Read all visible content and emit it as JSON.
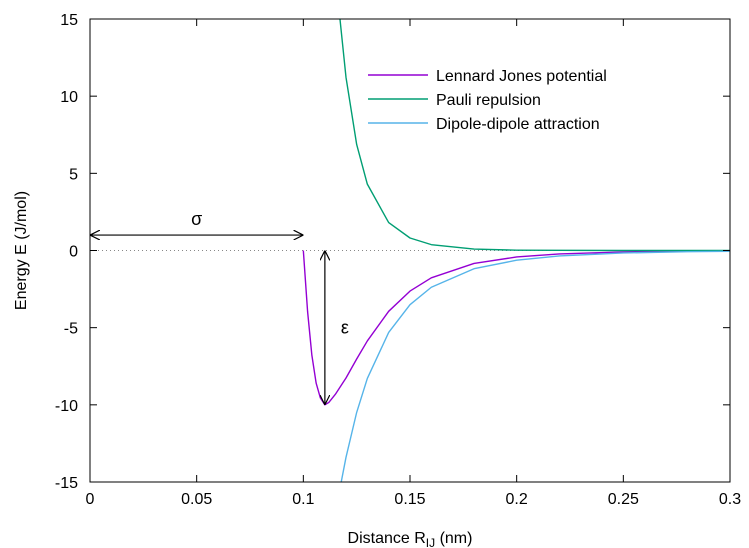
{
  "chart_data": {
    "type": "line",
    "title": "",
    "xlabel": "Distance R",
    "xlabel_sub": "IJ",
    "xlabel_unit": "(nm)",
    "ylabel": "Energy E (J/mol)",
    "xlim": [
      0,
      0.3
    ],
    "ylim": [
      -15,
      15
    ],
    "x_ticks": [
      0,
      0.05,
      0.1,
      0.15,
      0.2,
      0.25,
      0.3
    ],
    "x_tick_labels": [
      "0",
      "0.05",
      "0.1",
      "0.15",
      "0.2",
      "0.25",
      "0.3"
    ],
    "y_ticks": [
      -15,
      -10,
      -5,
      0,
      5,
      10,
      15
    ],
    "y_tick_labels": [
      "-15",
      "-10",
      "-5",
      "0",
      "5",
      "10",
      "15"
    ],
    "grid": false,
    "legend_position": "top-right",
    "parameters": {
      "sigma": 0.1,
      "epsilon": 10
    },
    "series": [
      {
        "name": "Lennard Jones potential",
        "color": "#9400d3",
        "x": [
          0.1,
          0.102,
          0.104,
          0.106,
          0.108,
          0.1101,
          0.112,
          0.115,
          0.12,
          0.125,
          0.13,
          0.14,
          0.15,
          0.16,
          0.18,
          0.2,
          0.22,
          0.25,
          0.28,
          0.3
        ],
        "y": [
          0.0,
          -3.96,
          -6.79,
          -8.59,
          -9.56,
          -10.0,
          -9.84,
          -9.32,
          -8.26,
          -7.03,
          -5.86,
          -3.94,
          -2.63,
          -1.77,
          -0.84,
          -0.42,
          -0.22,
          -0.09,
          -0.04,
          -0.03
        ]
      },
      {
        "name": "Pauli repulsion",
        "color": "#009e73",
        "x": [
          0.1165,
          0.12,
          0.125,
          0.13,
          0.14,
          0.15,
          0.16,
          0.18,
          0.2,
          0.22,
          0.25,
          0.28,
          0.3
        ],
        "y": [
          15.9,
          11.22,
          6.87,
          4.3,
          1.81,
          0.81,
          0.38,
          0.09,
          0.02,
          0.01,
          0.0,
          0.0,
          0.0
        ]
      },
      {
        "name": "Dipole-dipole attraction",
        "color": "#56b4e9",
        "x": [
          0.1165,
          0.12,
          0.125,
          0.13,
          0.14,
          0.15,
          0.16,
          0.18,
          0.2,
          0.22,
          0.25,
          0.28,
          0.3
        ],
        "y": [
          -15.9,
          -13.4,
          -10.49,
          -8.29,
          -5.31,
          -3.51,
          -2.38,
          -1.18,
          -0.63,
          -0.35,
          -0.16,
          -0.08,
          -0.05
        ]
      }
    ],
    "zero_line": {
      "style": "dotted",
      "y": 0
    },
    "annotations": [
      {
        "text": "σ",
        "from": [
          0,
          1
        ],
        "to": [
          0.1,
          1
        ],
        "arrow": "both"
      },
      {
        "text": "ε",
        "from": [
          0.1101,
          0
        ],
        "to": [
          0.1101,
          -10
        ],
        "arrow": "both"
      }
    ]
  }
}
